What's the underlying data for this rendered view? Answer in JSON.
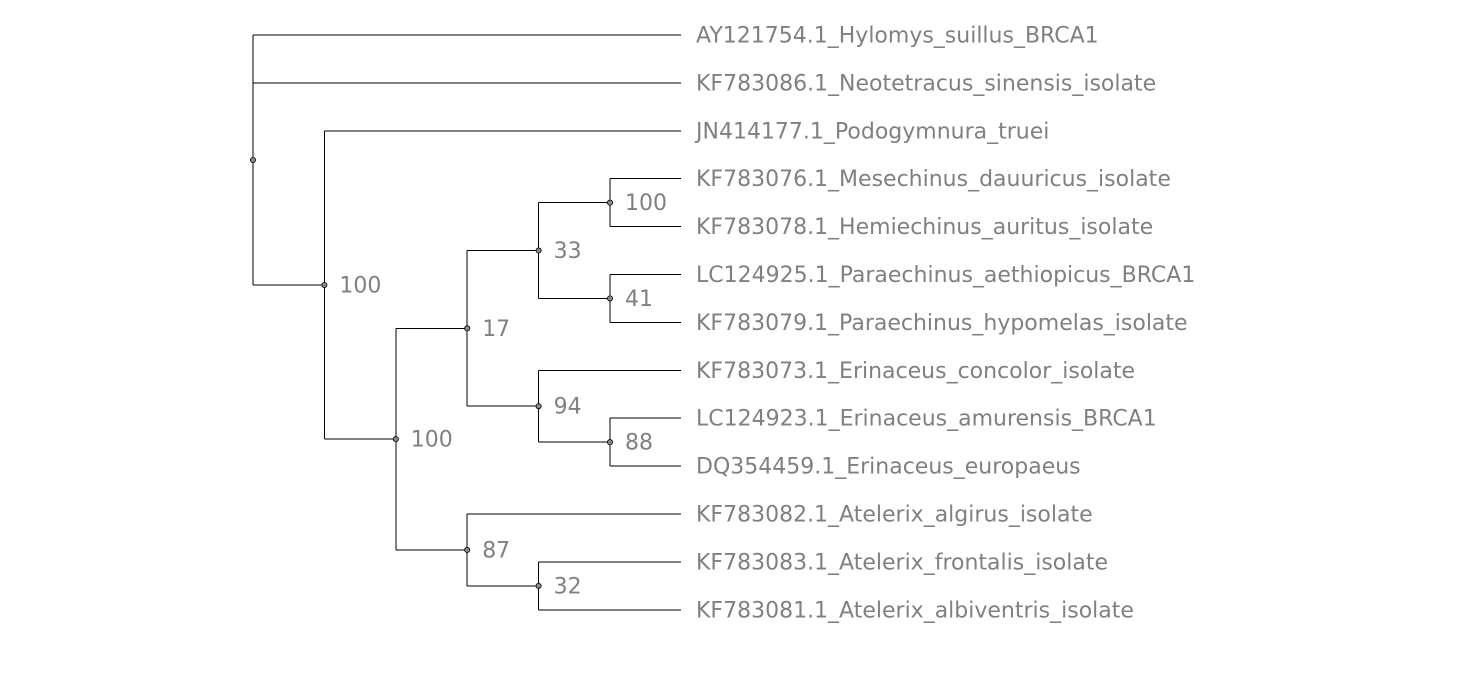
{
  "tree": {
    "leaves": [
      {
        "id": "L1",
        "label": "AY121754.1_Hylomys_suillus_BRCA1"
      },
      {
        "id": "L2",
        "label": "KF783086.1_Neotetracus_sinensis_isolate"
      },
      {
        "id": "L3",
        "label": "JN414177.1_Podogymnura_truei"
      },
      {
        "id": "L4",
        "label": "KF783076.1_Mesechinus_dauuricus_isolate"
      },
      {
        "id": "L5",
        "label": "KF783078.1_Hemiechinus_auritus_isolate"
      },
      {
        "id": "L6",
        "label": "LC124925.1_Paraechinus_aethiopicus_BRCA1"
      },
      {
        "id": "L7",
        "label": "KF783079.1_Paraechinus_hypomelas_isolate"
      },
      {
        "id": "L8",
        "label": "KF783073.1_Erinaceus_concolor_isolate"
      },
      {
        "id": "L9",
        "label": "LC124923.1_Erinaceus_amurensis_BRCA1"
      },
      {
        "id": "L10",
        "label": "DQ354459.1_Erinaceus_europaeus"
      },
      {
        "id": "L11",
        "label": "KF783082.1_Atelerix_algirus_isolate"
      },
      {
        "id": "L12",
        "label": "KF783083.1_Atelerix_frontalis_isolate"
      },
      {
        "id": "L13",
        "label": "KF783081.1_Atelerix_albiventris_isolate"
      }
    ],
    "root": "N0",
    "nodes": [
      {
        "id": "N0",
        "support": "",
        "children": [
          "L1",
          "L2",
          "N1"
        ]
      },
      {
        "id": "N1",
        "support": "100",
        "children": [
          "L3",
          "N2"
        ]
      },
      {
        "id": "N2",
        "support": "100",
        "children": [
          "N3",
          "N7"
        ]
      },
      {
        "id": "N3",
        "support": "17",
        "children": [
          "N4",
          "N6"
        ]
      },
      {
        "id": "N4",
        "support": "33",
        "children": [
          "N5",
          "N9"
        ]
      },
      {
        "id": "N5",
        "support": "100",
        "children": [
          "L4",
          "L5"
        ]
      },
      {
        "id": "N9",
        "support": "41",
        "children": [
          "L6",
          "L7"
        ]
      },
      {
        "id": "N6",
        "support": "94",
        "children": [
          "L8",
          "N10"
        ]
      },
      {
        "id": "N10",
        "support": "88",
        "children": [
          "L9",
          "L10"
        ]
      },
      {
        "id": "N7",
        "support": "87",
        "children": [
          "L11",
          "N8"
        ]
      },
      {
        "id": "N8",
        "support": "32",
        "children": [
          "L12",
          "L13"
        ]
      }
    ]
  }
}
